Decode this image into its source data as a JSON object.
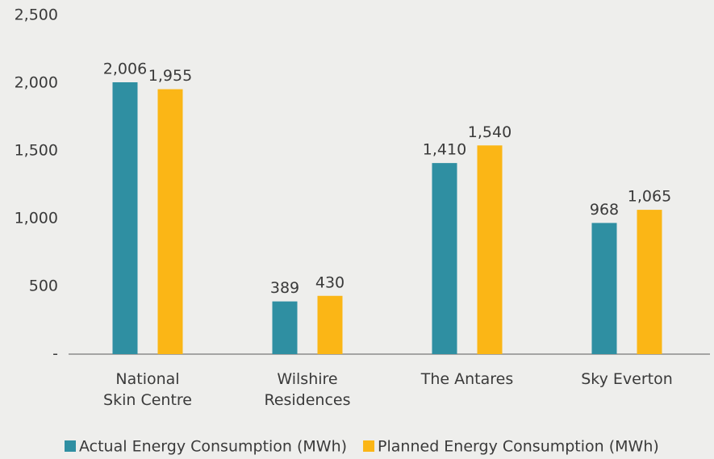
{
  "chart_data": {
    "type": "bar",
    "categories": [
      "National\nSkin Centre",
      "Wilshire\nResidences",
      "The Antares",
      "Sky Everton"
    ],
    "series": [
      {
        "name": "Actual Energy Consumption (MWh)",
        "color": "#2f8fa2",
        "values": [
          2006,
          389,
          1410,
          968
        ],
        "value_labels": [
          "2,006",
          "389",
          "1,410",
          "968"
        ]
      },
      {
        "name": "Planned Energy Consumption (MWh)",
        "color": "#fbb616",
        "values": [
          1955,
          430,
          1540,
          1065
        ],
        "value_labels": [
          "1,955",
          "430",
          "1,540",
          "1,065"
        ]
      }
    ],
    "ylim": [
      0,
      2500
    ],
    "yticks": [
      {
        "value": 0,
        "label": "-"
      },
      500,
      {
        "value": 1000,
        "label": "1,000"
      },
      {
        "value": 1500,
        "label": "1,500"
      },
      {
        "value": 2000,
        "label": "2,000"
      },
      {
        "value": 2500,
        "label": "2,500"
      }
    ],
    "grid": false
  }
}
